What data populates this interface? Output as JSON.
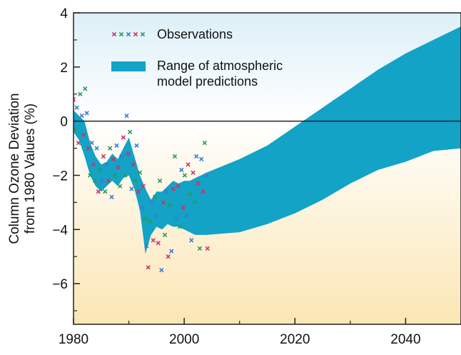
{
  "chart_data": {
    "type": "area",
    "title": "",
    "xlabel": "",
    "ylabel_lines": [
      "Column Ozone Deviation",
      "from 1980 Values (%)"
    ],
    "xlim": [
      1980,
      2050
    ],
    "ylim": [
      -7.5,
      4
    ],
    "x_ticks": [
      1980,
      2000,
      2020,
      2040
    ],
    "y_ticks": [
      4,
      2,
      0,
      -2,
      -4,
      -6
    ],
    "reference_line_y": 0,
    "legend": {
      "position": "top-left",
      "observations_label": "Observations",
      "range_label_lines": [
        "Range of atmospheric",
        "model predictions"
      ]
    },
    "colors": {
      "band": "#12a3c6",
      "obs": [
        "#d0306a",
        "#2a9a5a",
        "#3a7ad8"
      ],
      "bg_top": "#dcf0f8",
      "bg_bottom": "#fbe6b4"
    },
    "series": [
      {
        "name": "Range of atmospheric model predictions",
        "kind": "band",
        "x": [
          1980,
          1981,
          1982,
          1983,
          1984,
          1985,
          1986,
          1987,
          1988,
          1989,
          1990,
          1991,
          1992,
          1993,
          1994,
          1995,
          1996,
          1997,
          1998,
          1999,
          2000,
          2001,
          2002,
          2003,
          2004,
          2010,
          2015,
          2020,
          2025,
          2030,
          2035,
          2040,
          2045,
          2050
        ],
        "upper": [
          0.4,
          0.2,
          0.0,
          -0.8,
          -1.3,
          -1.6,
          -1.5,
          -1.2,
          -1.4,
          -1.0,
          -0.6,
          -1.3,
          -2.0,
          -2.5,
          -2.9,
          -2.6,
          -2.6,
          -2.4,
          -2.2,
          -2.3,
          -2.2,
          -2.2,
          -2.1,
          -2.0,
          -1.9,
          -1.4,
          -0.9,
          -0.2,
          0.5,
          1.2,
          1.9,
          2.5,
          3.0,
          3.5
        ],
        "lower": [
          -0.4,
          -0.7,
          -1.3,
          -2.0,
          -2.4,
          -2.6,
          -2.4,
          -2.2,
          -2.4,
          -2.1,
          -2.0,
          -2.5,
          -3.3,
          -4.9,
          -4.2,
          -3.9,
          -4.0,
          -3.8,
          -3.9,
          -3.9,
          -4.0,
          -4.1,
          -4.2,
          -4.2,
          -4.2,
          -4.1,
          -3.8,
          -3.4,
          -2.9,
          -2.3,
          -1.8,
          -1.5,
          -1.1,
          -1.0
        ]
      },
      {
        "name": "Observations",
        "kind": "points",
        "x": [
          1980.0,
          1980.3,
          1980.6,
          1980.9,
          1981.2,
          1981.5,
          1981.8,
          1982.1,
          1982.4,
          1982.7,
          1983.0,
          1983.3,
          1983.6,
          1983.9,
          1984.2,
          1984.5,
          1984.8,
          1985.1,
          1985.4,
          1985.7,
          1986.0,
          1986.3,
          1986.6,
          1986.9,
          1987.2,
          1987.5,
          1987.8,
          1988.1,
          1988.4,
          1988.7,
          1989.0,
          1989.3,
          1989.6,
          1989.9,
          1990.2,
          1990.5,
          1990.8,
          1991.1,
          1991.4,
          1991.7,
          1992.0,
          1992.3,
          1992.6,
          1992.9,
          1993.2,
          1993.5,
          1993.8,
          1994.1,
          1994.4,
          1994.7,
          1995.0,
          1995.3,
          1995.6,
          1995.9,
          1996.2,
          1996.5,
          1996.8,
          1997.1,
          1997.4,
          1997.7,
          1998.0,
          1998.3,
          1998.6,
          1998.9,
          1999.2,
          1999.5,
          1999.8,
          2000.1,
          2000.4,
          2000.7,
          2001.0,
          2001.3,
          2001.6,
          2001.9,
          2002.2,
          2002.5,
          2002.8,
          2003.1,
          2003.4,
          2003.7,
          2004.0,
          2004.2
        ],
        "y": [
          0.8,
          -0.3,
          0.5,
          -0.8,
          1.0,
          0.2,
          -0.5,
          1.2,
          0.3,
          -1.0,
          -2.0,
          -0.8,
          -1.6,
          -2.2,
          -1.0,
          -2.6,
          -1.8,
          -2.2,
          -1.3,
          -2.6,
          -1.6,
          -2.2,
          -1.0,
          -2.8,
          -1.4,
          -2.0,
          -0.9,
          -1.7,
          -2.4,
          -1.3,
          -0.6,
          -2.0,
          0.2,
          -1.2,
          -0.4,
          -2.5,
          -1.6,
          -2.2,
          -0.9,
          -2.6,
          -1.9,
          -3.2,
          -2.4,
          -3.6,
          -4.6,
          -5.4,
          -3.7,
          -3.0,
          -4.4,
          -2.8,
          -3.5,
          -4.5,
          -2.2,
          -5.5,
          -3.0,
          -4.2,
          -2.6,
          -5.0,
          -3.1,
          -4.8,
          -2.5,
          -1.3,
          -3.6,
          -2.4,
          -3.9,
          -1.8,
          -3.2,
          -2.0,
          -3.5,
          -1.6,
          -2.7,
          -4.4,
          -1.9,
          -3.0,
          -1.3,
          -2.3,
          -4.7,
          -1.4,
          -2.6,
          -0.8,
          -2.0,
          -4.7
        ]
      }
    ]
  }
}
